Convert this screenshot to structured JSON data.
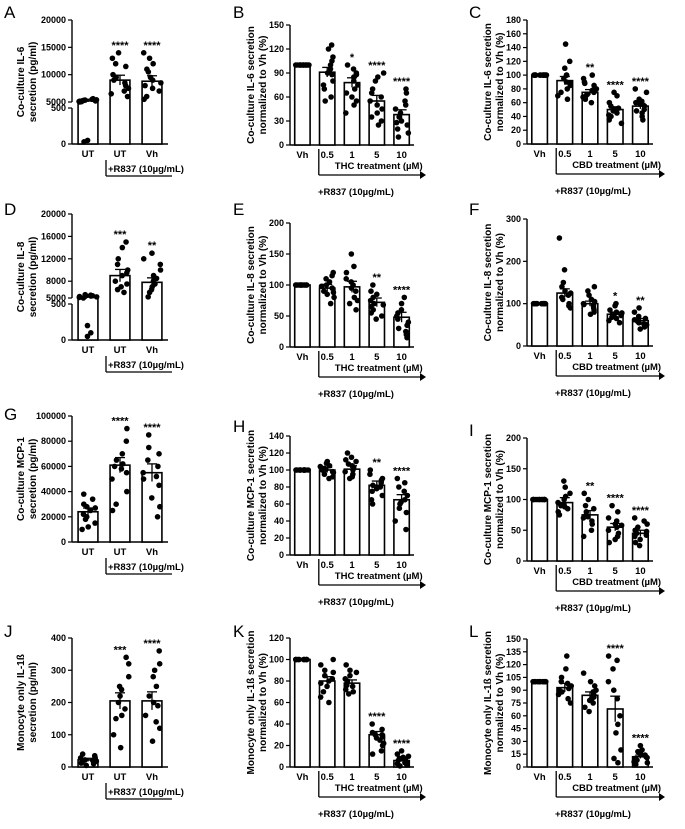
{
  "panels": [
    {
      "id": "A",
      "kind": "abs",
      "ylabel": [
        "Co-culture IL-6",
        "secretion (pg/ml)"
      ],
      "categories": [
        "UT",
        "UT",
        "Vh"
      ],
      "bar_groups": [
        [
          1,
          2
        ]
      ],
      "bracket_label": "+R837 (10µg/mL)",
      "axis": {
        "broken": true,
        "lower_max": 500,
        "lower_ticks": [
          0,
          500
        ],
        "upper_min": 5000,
        "upper_max": 20000,
        "upper_ticks": [
          5000,
          10000,
          15000,
          20000
        ]
      },
      "means": [
        5200,
        9000,
        8800
      ],
      "sem": [
        300,
        900,
        1000
      ],
      "stars": [
        "",
        "****",
        "****"
      ],
      "points": [
        [
          5100,
          5200,
          5000,
          5300,
          5250,
          5150,
          5400,
          5050,
          5350,
          5200,
          5500,
          5600,
          50,
          30
        ],
        [
          6000,
          7000,
          13000,
          14000,
          11500,
          9000,
          8000,
          10000,
          7500,
          9500,
          8500,
          6500,
          12000
        ],
        [
          5500,
          12000,
          13000,
          10500,
          9000,
          8000,
          14000,
          7000,
          6000,
          9500,
          8500,
          11000,
          7500
        ]
      ]
    },
    {
      "id": "B",
      "kind": "norm",
      "ylabel": [
        "Co-culture IL-6 secretion",
        "normalized to Vh (%)"
      ],
      "categories": [
        "Vh",
        "0.5",
        "1",
        "5",
        "10"
      ],
      "treatment": "THC treatment (µM)",
      "below_label": "+R837 (10µg/mL)",
      "axis": {
        "min": 0,
        "max": 150,
        "ticks": [
          0,
          30,
          60,
          90,
          120,
          150
        ]
      },
      "means": [
        100,
        91,
        78,
        55,
        38
      ],
      "sem": [
        1,
        6,
        6,
        7,
        6
      ],
      "stars": [
        "",
        "",
        "*",
        "****",
        "****"
      ],
      "points": [
        [
          100,
          100,
          100,
          100,
          100,
          100,
          100,
          100,
          100,
          100,
          100,
          100
        ],
        [
          125,
          120,
          110,
          100,
          95,
          90,
          88,
          80,
          75,
          70,
          105,
          55,
          60
        ],
        [
          100,
          95,
          90,
          85,
          80,
          75,
          70,
          65,
          60,
          55,
          50,
          88,
          40
        ],
        [
          90,
          80,
          70,
          65,
          55,
          50,
          45,
          40,
          35,
          30,
          60,
          25,
          85
        ],
        [
          70,
          65,
          55,
          45,
          40,
          35,
          30,
          25,
          20,
          15,
          10,
          50,
          28
        ]
      ]
    },
    {
      "id": "C",
      "kind": "norm",
      "ylabel": [
        "Co-culture IL-6 secretion",
        "normalized to Vh (%)"
      ],
      "categories": [
        "Vh",
        "0.5",
        "1",
        "5",
        "10"
      ],
      "treatment": "CBD treatment (µM)",
      "below_label": "+R837 (10µg/mL)",
      "axis": {
        "min": 0,
        "max": 180,
        "ticks": [
          0,
          20,
          40,
          60,
          80,
          100,
          120,
          140,
          160,
          180
        ]
      },
      "means": [
        100,
        92,
        75,
        50,
        55
      ],
      "sem": [
        1,
        6,
        4,
        4,
        4
      ],
      "stars": [
        "",
        "",
        "**",
        "****",
        "****"
      ],
      "points": [
        [
          100,
          100,
          100,
          100,
          100,
          100,
          100,
          100,
          100,
          100,
          100,
          100
        ],
        [
          145,
          120,
          110,
          100,
          95,
          90,
          85,
          80,
          75,
          70,
          65,
          100,
          88
        ],
        [
          100,
          95,
          90,
          85,
          80,
          75,
          70,
          65,
          60,
          78,
          72,
          68,
          88
        ],
        [
          75,
          70,
          60,
          55,
          50,
          45,
          40,
          35,
          30,
          52,
          48,
          42
        ],
        [
          80,
          75,
          65,
          60,
          55,
          50,
          45,
          40,
          35,
          58,
          62,
          48
        ]
      ]
    },
    {
      "id": "D",
      "kind": "abs",
      "ylabel": [
        "Co-culture IL-8",
        "secretion (pg/ml)"
      ],
      "categories": [
        "UT",
        "UT",
        "Vh"
      ],
      "bar_groups": [
        [
          1,
          2
        ]
      ],
      "bracket_label": "+R837 (10µg/mL)",
      "axis": {
        "broken": true,
        "lower_max": 500,
        "lower_ticks": [
          0,
          500
        ],
        "upper_min": 5000,
        "upper_max": 20000,
        "upper_ticks": [
          5000,
          8000,
          12000,
          16000,
          20000
        ]
      },
      "means": [
        5300,
        9000,
        7800
      ],
      "sem": [
        300,
        1100,
        800
      ],
      "stars": [
        "",
        "***",
        "**"
      ],
      "points": [
        [
          5200,
          5300,
          5100,
          5400,
          5000,
          5500,
          5600,
          5250,
          5350,
          200,
          100,
          50
        ],
        [
          6000,
          7000,
          14000,
          15000,
          12000,
          10000,
          9000,
          8000,
          11000,
          6500,
          7500,
          9500
        ],
        [
          5200,
          6000,
          12000,
          13000,
          10000,
          9000,
          8000,
          7000,
          6500,
          8500,
          7500,
          11000
        ]
      ]
    },
    {
      "id": "E",
      "kind": "norm",
      "ylabel": [
        "Co-culture IL-8 secretion",
        "normalized to Vh (%)"
      ],
      "categories": [
        "Vh",
        "0.5",
        "1",
        "5",
        "10"
      ],
      "treatment": "THC treatment (µM)",
      "below_label": "+R837 (10µg/mL)",
      "axis": {
        "min": 0,
        "max": 200,
        "ticks": [
          0,
          50,
          100,
          150,
          200
        ]
      },
      "means": [
        100,
        95,
        97,
        72,
        48
      ],
      "sem": [
        1,
        6,
        9,
        7,
        8
      ],
      "stars": [
        "",
        "",
        "",
        "**",
        "****"
      ],
      "points": [
        [
          100,
          100,
          100,
          100,
          100,
          100,
          100,
          100,
          100,
          100,
          100,
          100
        ],
        [
          120,
          115,
          110,
          105,
          100,
          95,
          90,
          85,
          80,
          70,
          98,
          88
        ],
        [
          150,
          130,
          120,
          110,
          100,
          95,
          90,
          80,
          70,
          60,
          105,
          75
        ],
        [
          100,
          90,
          85,
          75,
          70,
          65,
          60,
          55,
          50,
          45,
          80,
          68
        ],
        [
          80,
          70,
          60,
          55,
          50,
          45,
          40,
          30,
          20,
          15,
          35,
          25
        ]
      ]
    },
    {
      "id": "F",
      "kind": "norm",
      "ylabel": [
        "Co-culture IL-8 secretion",
        "normalized to Vh (%)"
      ],
      "categories": [
        "Vh",
        "0.5",
        "1",
        "5",
        "10"
      ],
      "treatment": "CBD treatment (µM)",
      "below_label": "+R837 (10µg/mL)",
      "axis": {
        "min": 0,
        "max": 300,
        "ticks": [
          0,
          100,
          200,
          300
        ]
      },
      "means": [
        100,
        125,
        100,
        75,
        60
      ],
      "sem": [
        1,
        10,
        6,
        5,
        5
      ],
      "stars": [
        "",
        "",
        "",
        "*",
        "**"
      ],
      "points": [
        [
          100,
          100,
          100,
          100,
          100,
          100,
          100,
          100,
          100,
          100,
          100,
          100
        ],
        [
          255,
          180,
          150,
          130,
          120,
          110,
          100,
          95,
          90,
          140,
          125,
          115
        ],
        [
          140,
          130,
          120,
          110,
          100,
          95,
          90,
          85,
          80,
          105,
          98,
          75
        ],
        [
          100,
          95,
          85,
          80,
          75,
          70,
          65,
          60,
          55,
          78,
          72,
          68
        ],
        [
          90,
          80,
          70,
          65,
          60,
          55,
          50,
          45,
          40,
          62,
          58,
          52
        ]
      ]
    },
    {
      "id": "G",
      "kind": "abs",
      "ylabel": [
        "Co-culture MCP-1",
        "secretion (pg/ml)"
      ],
      "categories": [
        "UT",
        "UT",
        "Vh"
      ],
      "bar_groups": [
        [
          1,
          2
        ]
      ],
      "bracket_label": "+R837 (10µg/mL)",
      "axis": {
        "broken": false,
        "min": 0,
        "max": 100000,
        "ticks": [
          0,
          20000,
          40000,
          60000,
          80000,
          100000
        ]
      },
      "means": [
        24000,
        61000,
        55000
      ],
      "sem": [
        3000,
        6000,
        7000
      ],
      "stars": [
        "",
        "****",
        "****"
      ],
      "points": [
        [
          10000,
          12000,
          15000,
          18000,
          20000,
          22000,
          25000,
          28000,
          30000,
          34000,
          38000,
          27000
        ],
        [
          25000,
          30000,
          40000,
          50000,
          55000,
          60000,
          62000,
          65000,
          70000,
          80000,
          90000,
          58000
        ],
        [
          20000,
          28000,
          35000,
          45000,
          50000,
          55000,
          60000,
          65000,
          70000,
          75000,
          85000,
          52000
        ]
      ]
    },
    {
      "id": "H",
      "kind": "norm",
      "ylabel": [
        "Co-culture MCP-1 secretion",
        "normalized to Vh (%)"
      ],
      "categories": [
        "Vh",
        "0.5",
        "1",
        "5",
        "10"
      ],
      "treatment": "THC treatment (µM)",
      "below_label": "+R837 (10µg/mL)",
      "axis": {
        "min": 0,
        "max": 140,
        "ticks": [
          0,
          20,
          40,
          60,
          80,
          100,
          120,
          140
        ]
      },
      "means": [
        100,
        100,
        101,
        82,
        65
      ],
      "sem": [
        1,
        3,
        4,
        5,
        6
      ],
      "stars": [
        "",
        "",
        "",
        "**",
        "****"
      ],
      "points": [
        [
          100,
          100,
          100,
          100,
          100,
          100,
          100,
          100,
          100,
          100,
          100,
          100
        ],
        [
          110,
          108,
          105,
          102,
          100,
          98,
          95,
          92,
          90,
          104,
          97,
          101
        ],
        [
          120,
          115,
          110,
          105,
          100,
          98,
          95,
          92,
          90,
          112,
          103,
          107
        ],
        [
          100,
          95,
          90,
          85,
          80,
          75,
          70,
          65,
          60,
          88,
          82,
          78
        ],
        [
          90,
          85,
          80,
          70,
          65,
          60,
          55,
          50,
          40,
          30,
          75,
          62
        ]
      ]
    },
    {
      "id": "I",
      "kind": "norm",
      "ylabel": [
        "Co-culture MCP-1 secretion",
        "normalized to Vh (%)"
      ],
      "categories": [
        "Vh",
        "0.5",
        "1",
        "5",
        "10"
      ],
      "treatment": "CBD treatment (µM)",
      "below_label": "+R837 (10µg/mL)",
      "axis": {
        "min": 0,
        "max": 200,
        "ticks": [
          0,
          50,
          100,
          150,
          200
        ]
      },
      "means": [
        100,
        95,
        75,
        55,
        45
      ],
      "sem": [
        1,
        8,
        7,
        6,
        5
      ],
      "stars": [
        "",
        "",
        "**",
        "****",
        "****"
      ],
      "points": [
        [
          100,
          100,
          100,
          100,
          100,
          100,
          100,
          100,
          100,
          100,
          100,
          100
        ],
        [
          130,
          120,
          110,
          100,
          95,
          90,
          85,
          80,
          75,
          105,
          92,
          88
        ],
        [
          110,
          100,
          90,
          85,
          80,
          75,
          70,
          65,
          60,
          50,
          40,
          72
        ],
        [
          90,
          80,
          70,
          65,
          60,
          55,
          50,
          45,
          40,
          35,
          30,
          58
        ],
        [
          70,
          65,
          60,
          55,
          50,
          45,
          40,
          35,
          30,
          25,
          48,
          42
        ]
      ]
    },
    {
      "id": "J",
      "kind": "abs",
      "ylabel": [
        "Monocyte only IL-1ß",
        "secretion (pg/ml)"
      ],
      "categories": [
        "UT",
        "UT",
        "Vh"
      ],
      "bar_groups": [
        [
          1,
          2
        ]
      ],
      "bracket_label": "+R837 (10µg/mL)",
      "axis": {
        "broken": false,
        "min": 0,
        "max": 400,
        "ticks": [
          0,
          100,
          200,
          300,
          400
        ]
      },
      "means": [
        22,
        205,
        205
      ],
      "sem": [
        5,
        25,
        28
      ],
      "stars": [
        "",
        "***",
        "****"
      ],
      "points": [
        [
          10,
          15,
          20,
          25,
          30,
          5,
          12,
          18,
          35,
          40,
          22,
          28
        ],
        [
          100,
          150,
          180,
          200,
          220,
          250,
          280,
          320,
          340,
          60,
          160,
          240
        ],
        [
          80,
          120,
          160,
          200,
          220,
          250,
          280,
          320,
          360,
          140,
          190,
          300
        ]
      ]
    },
    {
      "id": "K",
      "kind": "norm",
      "ylabel": [
        "Monocyte only IL-1ß secretion",
        "normalized to Vh (%)"
      ],
      "categories": [
        "Vh",
        "0.5",
        "1",
        "5",
        "10"
      ],
      "treatment": "THC treatment (µM)",
      "below_label": "+R837 (10µg/mL)",
      "axis": {
        "min": 0,
        "max": 120,
        "ticks": [
          0,
          20,
          40,
          60,
          80,
          100,
          120
        ]
      },
      "means": [
        100,
        80,
        78,
        30,
        6
      ],
      "sem": [
        1,
        4,
        3,
        3,
        1
      ],
      "stars": [
        "",
        "",
        "",
        "****",
        "****"
      ],
      "points": [
        [
          100,
          100,
          100,
          100,
          100,
          100,
          100,
          100,
          100,
          100,
          100,
          100
        ],
        [
          100,
          95,
          90,
          85,
          80,
          75,
          70,
          65,
          60,
          82,
          78,
          88
        ],
        [
          95,
          90,
          85,
          80,
          78,
          75,
          72,
          70,
          68,
          82,
          76,
          88
        ],
        [
          40,
          35,
          30,
          28,
          25,
          20,
          15,
          32,
          27,
          22,
          12,
          30
        ],
        [
          15,
          12,
          10,
          8,
          5,
          3,
          2,
          4,
          6,
          9,
          1,
          7
        ]
      ]
    },
    {
      "id": "L",
      "kind": "norm",
      "ylabel": [
        "Monocyte only IL-1ß secretion",
        "normalized to Vh (%)"
      ],
      "categories": [
        "Vh",
        "0.5",
        "1",
        "5",
        "10"
      ],
      "treatment": "CBD treatment (µM)",
      "below_label": "+R837 (10µg/mL)",
      "axis": {
        "min": 0,
        "max": 150,
        "ticks": [
          0,
          15,
          30,
          45,
          60,
          75,
          90,
          105,
          120,
          135,
          150
        ]
      },
      "means": [
        100,
        93,
        84,
        68,
        12
      ],
      "sem": [
        1,
        5,
        4,
        15,
        2
      ],
      "stars": [
        "",
        "",
        "",
        "****",
        "****"
      ],
      "points": [
        [
          100,
          100,
          100,
          100,
          100,
          100,
          100,
          100,
          100,
          100,
          100,
          100
        ],
        [
          130,
          115,
          105,
          100,
          95,
          90,
          85,
          80,
          75,
          98,
          92,
          88
        ],
        [
          110,
          100,
          95,
          90,
          85,
          80,
          75,
          70,
          65,
          88,
          82,
          78
        ],
        [
          130,
          125,
          115,
          100,
          90,
          80,
          60,
          40,
          20,
          10,
          5,
          50
        ],
        [
          25,
          20,
          18,
          15,
          12,
          10,
          8,
          5,
          3,
          14,
          11,
          6
        ]
      ]
    }
  ]
}
